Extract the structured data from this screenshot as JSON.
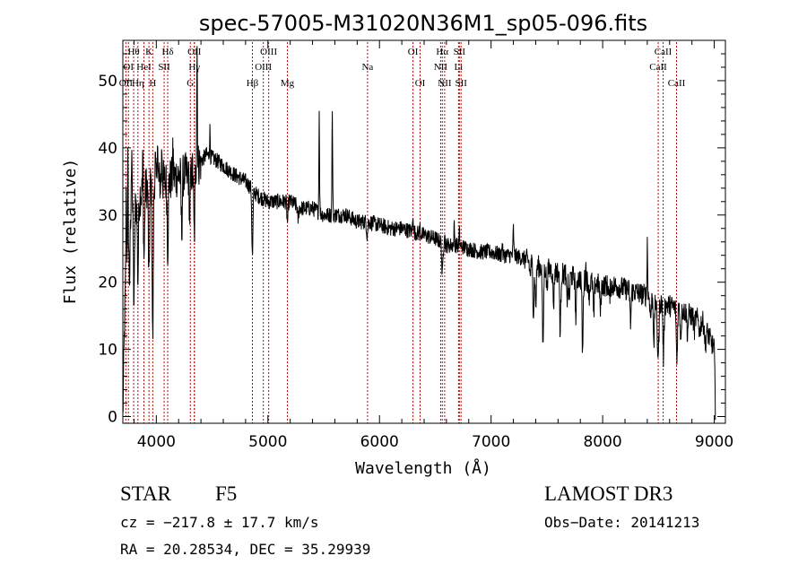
{
  "chart_data": {
    "type": "line",
    "title": "spec-57005-M31020N36M1_sp05-096.fits",
    "xlabel": "Wavelength (Å)",
    "ylabel": "Flux (relative)",
    "xlim": [
      3700,
      9100
    ],
    "ylim": [
      -1,
      56
    ],
    "xticks": [
      4000,
      5000,
      6000,
      7000,
      8000,
      9000
    ],
    "yticks": [
      0,
      10,
      20,
      30,
      40,
      50
    ],
    "series": [
      {
        "name": "flux",
        "continuum": [
          [
            3700,
            0
          ],
          [
            3705,
            4
          ],
          [
            3715,
            14
          ],
          [
            3730,
            22
          ],
          [
            3760,
            29
          ],
          [
            3800,
            31
          ],
          [
            3850,
            33
          ],
          [
            3900,
            34
          ],
          [
            3950,
            35
          ],
          [
            4000,
            35
          ],
          [
            4100,
            35
          ],
          [
            4200,
            36
          ],
          [
            4300,
            36
          ],
          [
            4400,
            38
          ],
          [
            4450,
            39
          ],
          [
            4550,
            38
          ],
          [
            4700,
            36
          ],
          [
            4800,
            35
          ],
          [
            4900,
            33
          ],
          [
            5000,
            32
          ],
          [
            5100,
            32
          ],
          [
            5200,
            32
          ],
          [
            5300,
            31
          ],
          [
            5400,
            31
          ],
          [
            5500,
            30
          ],
          [
            5600,
            30
          ],
          [
            5700,
            30
          ],
          [
            5800,
            29
          ],
          [
            5900,
            29
          ],
          [
            6000,
            28.5
          ],
          [
            6100,
            28
          ],
          [
            6200,
            28
          ],
          [
            6300,
            27.5
          ],
          [
            6400,
            27
          ],
          [
            6500,
            26.5
          ],
          [
            6600,
            25.5
          ],
          [
            6700,
            25.5
          ],
          [
            6800,
            25
          ],
          [
            6900,
            24.5
          ],
          [
            7000,
            24.5
          ],
          [
            7100,
            24
          ],
          [
            7200,
            24
          ],
          [
            7300,
            23.5
          ],
          [
            7400,
            22.5
          ],
          [
            7500,
            22
          ],
          [
            7600,
            21.5
          ],
          [
            7700,
            21
          ],
          [
            7800,
            20.5
          ],
          [
            7900,
            20
          ],
          [
            8000,
            19.5
          ],
          [
            8100,
            19.5
          ],
          [
            8200,
            19
          ],
          [
            8300,
            18.5
          ],
          [
            8400,
            18
          ],
          [
            8500,
            17
          ],
          [
            8600,
            16.5
          ],
          [
            8700,
            16
          ],
          [
            8800,
            15
          ],
          [
            8900,
            14
          ],
          [
            8950,
            12
          ],
          [
            9000,
            10
          ],
          [
            9010,
            1
          ]
        ],
        "features": [
          [
            3730,
            10
          ],
          [
            3745,
            12
          ],
          [
            3760,
            -8
          ],
          [
            3780,
            12
          ],
          [
            3800,
            -14
          ],
          [
            3835,
            -12
          ],
          [
            3880,
            6
          ],
          [
            3890,
            -10
          ],
          [
            3934,
            -15
          ],
          [
            3968,
            -24
          ],
          [
            3990,
            3
          ],
          [
            4010,
            7
          ],
          [
            4050,
            5
          ],
          [
            4102,
            -10
          ],
          [
            4150,
            4
          ],
          [
            4227,
            -8
          ],
          [
            4300,
            -6
          ],
          [
            4340,
            -10
          ],
          [
            4365,
            18
          ],
          [
            4480,
            4
          ],
          [
            4861,
            -10
          ],
          [
            5175,
            -3
          ],
          [
            5270,
            -2
          ],
          [
            5460,
            15
          ],
          [
            5577,
            15
          ],
          [
            5890,
            -2
          ],
          [
            6300,
            3
          ],
          [
            6362,
            1
          ],
          [
            6563,
            -5
          ],
          [
            6583,
            2
          ],
          [
            6670,
            3
          ],
          [
            6716,
            2
          ],
          [
            7100,
            2
          ],
          [
            7200,
            4
          ],
          [
            7350,
            -2
          ],
          [
            7380,
            -7
          ],
          [
            7400,
            -6
          ],
          [
            7465,
            -12
          ],
          [
            7500,
            -3
          ],
          [
            7560,
            -5
          ],
          [
            7620,
            -9
          ],
          [
            7680,
            -4
          ],
          [
            7700,
            -4
          ],
          [
            7760,
            -6
          ],
          [
            7820,
            -11
          ],
          [
            7850,
            2
          ],
          [
            7880,
            -2
          ],
          [
            7920,
            -5
          ],
          [
            7980,
            -4
          ],
          [
            8060,
            -2
          ],
          [
            8250,
            -5
          ],
          [
            8400,
            8
          ],
          [
            8430,
            -3
          ],
          [
            8460,
            -6
          ],
          [
            8490,
            -5
          ],
          [
            8500,
            -7
          ],
          [
            8545,
            -8
          ],
          [
            8665,
            -8
          ],
          [
            8700,
            -4
          ],
          [
            8760,
            -3
          ],
          [
            8820,
            -2
          ],
          [
            8870,
            -2
          ],
          [
            8920,
            -3
          ]
        ],
        "noise": 1.2
      }
    ],
    "lines": [
      {
        "label": "Hθ",
        "wl": 3797,
        "row": 0
      },
      {
        "label": "OII",
        "wl": 3727,
        "row": 2
      },
      {
        "label": "OI",
        "wl": 3750,
        "row": 1
      },
      {
        "label": "HeI",
        "wl": 3889,
        "row": 1
      },
      {
        "label": "Hη",
        "wl": 3835,
        "row": 2
      },
      {
        "label": "K",
        "wl": 3934,
        "row": 0
      },
      {
        "label": "H",
        "wl": 3968,
        "row": 2
      },
      {
        "label": "SII",
        "wl": 4070,
        "row": 1
      },
      {
        "label": "Hδ",
        "wl": 4102,
        "row": 0
      },
      {
        "label": "OII",
        "wl": 4341,
        "row": 0
      },
      {
        "label": "Hγ",
        "wl": 4341,
        "row": 1
      },
      {
        "label": "G",
        "wl": 4305,
        "row": 2
      },
      {
        "label": "Hβ",
        "wl": 4861,
        "row": 2
      },
      {
        "label": "OIII",
        "wl": 5007,
        "row": 0
      },
      {
        "label": "OIII",
        "wl": 4959,
        "row": 1
      },
      {
        "label": "Mg",
        "wl": 5175,
        "row": 2
      },
      {
        "label": "Na",
        "wl": 5893,
        "row": 1
      },
      {
        "label": "OI",
        "wl": 6300,
        "row": 0
      },
      {
        "label": "OI",
        "wl": 6364,
        "row": 2
      },
      {
        "label": "Hα",
        "wl": 6563,
        "row": 0
      },
      {
        "label": "NII",
        "wl": 6548,
        "row": 1
      },
      {
        "label": "NII",
        "wl": 6584,
        "row": 2
      },
      {
        "label": "SII",
        "wl": 6716,
        "row": 0
      },
      {
        "label": "Li",
        "wl": 6708,
        "row": 1
      },
      {
        "label": "SII",
        "wl": 6731,
        "row": 2
      },
      {
        "label": "CaII",
        "wl": 8542,
        "row": 0
      },
      {
        "label": "CaII",
        "wl": 8498,
        "row": 1
      },
      {
        "label": "CaII",
        "wl": 8662,
        "row": 2
      }
    ]
  },
  "info": {
    "class": "STAR",
    "subclass": "F5",
    "survey": "LAMOST DR3",
    "cz": "cz = −217.8 ± 17.7 km/s",
    "obsdate": "Obs−Date: 20141213",
    "radec": "RA =  20.28534, DEC =  35.29939"
  },
  "colors": {
    "line": "#000000",
    "marker": "#cc0000",
    "background": "#ffffff"
  }
}
